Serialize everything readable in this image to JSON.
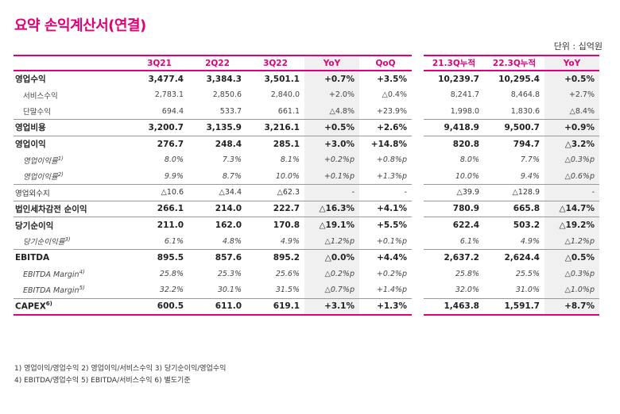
{
  "title": "요약 손익계산서(연결)",
  "unit": "단위 : 십억원",
  "headers": {
    "label": "",
    "q1": "3Q21",
    "q2": "2Q22",
    "q3": "3Q22",
    "yoy": "YoY",
    "qoq": "QoQ",
    "c1": "21.3Q누적",
    "c2": "22.3Q누적",
    "cyoy": "YoY"
  },
  "rows": [
    {
      "label": "영업수익",
      "sup": "",
      "v": [
        "3,477.4",
        "3,384.3",
        "3,501.1",
        "+0.7%",
        "+3.5%",
        "10,239.7",
        "10,295.4",
        "+0.5%"
      ]
    },
    {
      "label": "서비스수익",
      "sup": "",
      "v": [
        "2,783.1",
        "2,850.6",
        "2,840.0",
        "+2.0%",
        "△0.4%",
        "8,241.7",
        "8,464.8",
        "+2.7%"
      ]
    },
    {
      "label": "단말수익",
      "sup": "",
      "v": [
        "694.4",
        "533.7",
        "661.1",
        "△4.8%",
        "+23.9%",
        "1,998.0",
        "1,830.6",
        "△8.4%"
      ]
    },
    {
      "label": "영업비용",
      "sup": "",
      "v": [
        "3,200.7",
        "3,135.9",
        "3,216.1",
        "+0.5%",
        "+2.6%",
        "9,418.9",
        "9,500.7",
        "+0.9%"
      ]
    },
    {
      "label": "영업이익",
      "sup": "",
      "v": [
        "276.7",
        "248.4",
        "285.1",
        "+3.0%",
        "+14.8%",
        "820.8",
        "794.7",
        "△3.2%"
      ]
    },
    {
      "label": "영업이익률",
      "sup": "1)",
      "v": [
        "8.0%",
        "7.3%",
        "8.1%",
        "+0.2%p",
        "+0.8%p",
        "8.0%",
        "7.7%",
        "△0.3%p"
      ]
    },
    {
      "label": "영업이익률",
      "sup": "2)",
      "v": [
        "9.9%",
        "8.7%",
        "10.0%",
        "+0.1%p",
        "+1.3%p",
        "10.0%",
        "9.4%",
        "△0.6%p"
      ]
    },
    {
      "label": "영업외수지",
      "sup": "",
      "v": [
        "△10.6",
        "△34.4",
        "△62.3",
        "-",
        "-",
        "△39.9",
        "△128.9",
        "-"
      ]
    },
    {
      "label": "법인세차감전 순이익",
      "sup": "",
      "v": [
        "266.1",
        "214.0",
        "222.7",
        "△16.3%",
        "+4.1%",
        "780.9",
        "665.8",
        "△14.7%"
      ]
    },
    {
      "label": "당기순이익",
      "sup": "",
      "v": [
        "211.0",
        "162.0",
        "170.8",
        "△19.1%",
        "+5.5%",
        "622.4",
        "503.2",
        "△19.2%"
      ]
    },
    {
      "label": "당기순이익률",
      "sup": "3)",
      "v": [
        "6.1%",
        "4.8%",
        "4.9%",
        "△1.2%p",
        "+0.1%p",
        "6.1%",
        "4.9%",
        "△1.2%p"
      ]
    },
    {
      "label": "EBITDA",
      "sup": "",
      "v": [
        "895.5",
        "857.6",
        "895.2",
        "△0.0%",
        "+4.4%",
        "2,637.2",
        "2,624.4",
        "△0.5%"
      ]
    },
    {
      "label": "EBITDA Margin",
      "sup": "4)",
      "v": [
        "25.8%",
        "25.3%",
        "25.6%",
        "△0.2%p",
        "+0.2%p",
        "25.8%",
        "25.5%",
        "△0.3%p"
      ]
    },
    {
      "label": "EBITDA Margin",
      "sup": "5)",
      "v": [
        "32.2%",
        "30.1%",
        "31.5%",
        "△0.7%p",
        "+1.4%p",
        "32.0%",
        "31.0%",
        "△1.0%p"
      ]
    },
    {
      "label": "CAPEX",
      "sup": "6)",
      "v": [
        "600.5",
        "611.0",
        "619.1",
        "+3.1%",
        "+1.3%",
        "1,463.8",
        "1,591.7",
        "+8.7%"
      ]
    }
  ],
  "notes": [
    "1) 영업이익/영업수익  2) 영업이익/서비스수익  3) 당기순이익/영업수익",
    "4) EBITDA/영업수익  5) EBITDA/서비스수익  6) 별도기준"
  ],
  "colors": {
    "accent": "#e2007a",
    "shade": "#f0f0f0"
  }
}
